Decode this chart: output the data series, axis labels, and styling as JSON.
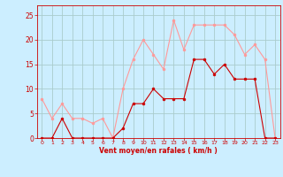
{
  "x": [
    0,
    1,
    2,
    3,
    4,
    5,
    6,
    7,
    8,
    9,
    10,
    11,
    12,
    13,
    14,
    15,
    16,
    17,
    18,
    19,
    20,
    21,
    22,
    23
  ],
  "wind_avg": [
    0,
    0,
    4,
    0,
    0,
    0,
    0,
    0,
    2,
    7,
    7,
    10,
    8,
    8,
    8,
    16,
    16,
    13,
    15,
    12,
    12,
    12,
    0,
    0
  ],
  "wind_gust": [
    8,
    4,
    7,
    4,
    4,
    3,
    4,
    0,
    10,
    16,
    20,
    17,
    14,
    24,
    18,
    23,
    23,
    23,
    23,
    21,
    17,
    19,
    16,
    0
  ],
  "xlabel": "Vent moyen/en rafales ( km/h )",
  "ylim": [
    0,
    27
  ],
  "xlim": [
    -0.5,
    23.5
  ],
  "yticks": [
    0,
    5,
    10,
    15,
    20,
    25
  ],
  "xticks": [
    0,
    1,
    2,
    3,
    4,
    5,
    6,
    7,
    8,
    9,
    10,
    11,
    12,
    13,
    14,
    15,
    16,
    17,
    18,
    19,
    20,
    21,
    22,
    23
  ],
  "bg_color": "#cceeff",
  "grid_color": "#aacccc",
  "avg_color": "#cc0000",
  "gust_color": "#ff9999",
  "tick_color": "#cc0000",
  "label_color": "#cc0000",
  "figsize": [
    3.2,
    2.0
  ],
  "dpi": 100
}
